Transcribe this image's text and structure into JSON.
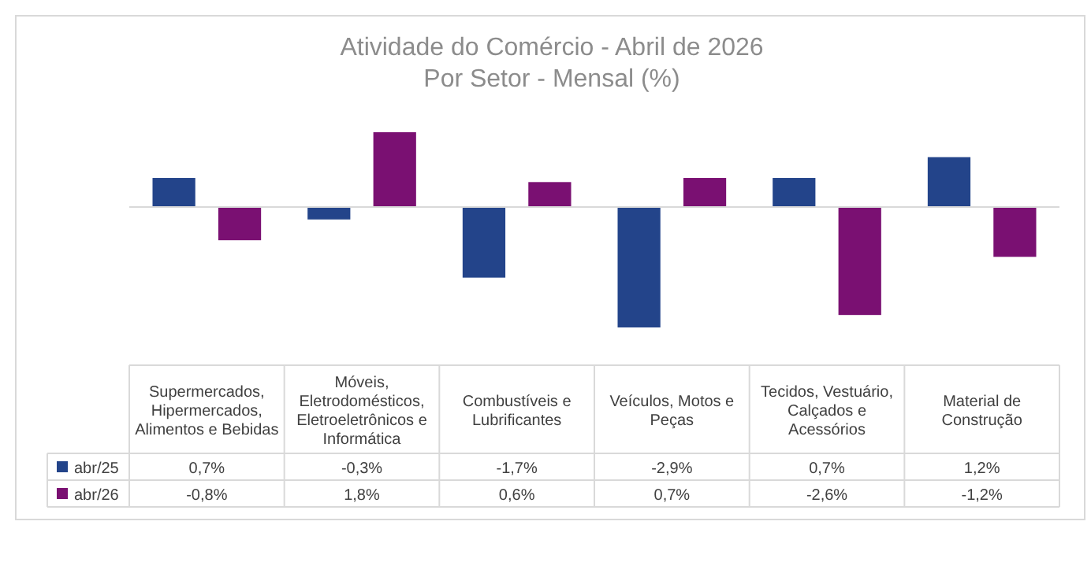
{
  "chart_data": {
    "type": "bar",
    "title": "Atividade do Comércio - Abril de 2026",
    "subtitle": "Por Setor - Mensal (%)",
    "categories": [
      "Supermercados, Hipermercados, Alimentos e Bebidas",
      "Móveis, Eletrodomésticos, Eletroeletrônicos e Informática",
      "Combustíveis e Lubrificantes",
      "Veículos, Motos e Peças",
      "Tecidos, Vestuário, Calçados e Acessórios",
      "Material de Construção"
    ],
    "series": [
      {
        "name": "abr/25",
        "color": "#23448a",
        "values": [
          0.7,
          -0.3,
          -1.7,
          -2.9,
          0.7,
          1.2
        ],
        "value_labels": [
          "0,7%",
          "-0,3%",
          "-1,7%",
          "-2,9%",
          "0,7%",
          "1,2%"
        ]
      },
      {
        "name": "abr/26",
        "color": "#7a1072",
        "values": [
          -0.8,
          1.8,
          0.6,
          0.7,
          -2.6,
          -1.2
        ],
        "value_labels": [
          "-0,8%",
          "1,8%",
          "0,6%",
          "0,7%",
          "-2,6%",
          "-1,2%"
        ]
      }
    ],
    "legend": "bottom"
  }
}
